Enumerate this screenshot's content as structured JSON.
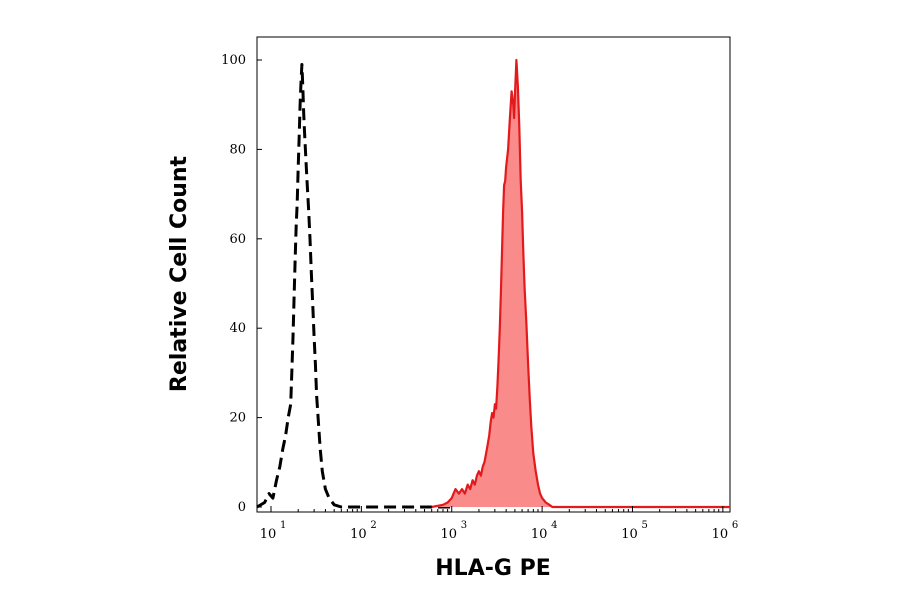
{
  "chart_data": {
    "type": "area",
    "xlabel": "HLA-G PE",
    "ylabel": "Relative Cell Count",
    "x_scale": "log",
    "xlim": [
      7,
      1200000
    ],
    "ylim": [
      0,
      100
    ],
    "x_ticks": [
      {
        "base": "10",
        "exp": "1",
        "value": 10
      },
      {
        "base": "10",
        "exp": "2",
        "value": 100
      },
      {
        "base": "10",
        "exp": "3",
        "value": 1000
      },
      {
        "base": "10",
        "exp": "4",
        "value": 10000
      },
      {
        "base": "10",
        "exp": "5",
        "value": 100000
      },
      {
        "base": "10",
        "exp": "6",
        "value": 1000000
      }
    ],
    "y_ticks": [
      0,
      20,
      40,
      60,
      80,
      100
    ],
    "grid": false,
    "legend": "none",
    "series": [
      {
        "style": "dashed",
        "color": "#000000",
        "fill": "none",
        "points": [
          [
            7,
            0
          ],
          [
            8.5,
            1
          ],
          [
            9.5,
            3
          ],
          [
            10.5,
            2
          ],
          [
            11.5,
            6
          ],
          [
            12.5,
            9
          ],
          [
            13.5,
            13
          ],
          [
            14.5,
            16
          ],
          [
            15.5,
            20
          ],
          [
            16.5,
            23
          ],
          [
            17,
            30
          ],
          [
            17.5,
            38
          ],
          [
            18,
            47
          ],
          [
            18.5,
            55
          ],
          [
            19,
            63
          ],
          [
            19.5,
            68
          ],
          [
            20,
            76
          ],
          [
            20.5,
            83
          ],
          [
            21,
            90
          ],
          [
            21.5,
            95
          ],
          [
            22,
            99
          ],
          [
            22.5,
            94
          ],
          [
            23,
            88
          ],
          [
            23.5,
            84
          ],
          [
            24,
            80
          ],
          [
            25,
            73
          ],
          [
            26,
            67
          ],
          [
            27,
            60
          ],
          [
            28,
            52
          ],
          [
            29,
            45
          ],
          [
            30,
            38
          ],
          [
            31,
            32
          ],
          [
            32,
            25
          ],
          [
            33.5,
            19
          ],
          [
            35,
            13
          ],
          [
            37,
            8
          ],
          [
            40,
            4
          ],
          [
            44,
            2
          ],
          [
            50,
            0.5
          ],
          [
            60,
            0
          ],
          [
            200,
            0
          ],
          [
            500,
            0
          ],
          [
            1000,
            0
          ]
        ]
      },
      {
        "style": "solid",
        "color": "#e31a1c",
        "fill": "#f98b8b",
        "points": [
          [
            600,
            0
          ],
          [
            800,
            0.5
          ],
          [
            900,
            1
          ],
          [
            1000,
            2
          ],
          [
            1100,
            4
          ],
          [
            1200,
            3
          ],
          [
            1300,
            4
          ],
          [
            1400,
            3
          ],
          [
            1500,
            5
          ],
          [
            1600,
            4
          ],
          [
            1700,
            6
          ],
          [
            1800,
            5
          ],
          [
            1900,
            7
          ],
          [
            2000,
            8
          ],
          [
            2100,
            7
          ],
          [
            2200,
            9
          ],
          [
            2300,
            10
          ],
          [
            2400,
            12
          ],
          [
            2500,
            14
          ],
          [
            2600,
            16
          ],
          [
            2700,
            19
          ],
          [
            2800,
            21
          ],
          [
            2900,
            20
          ],
          [
            3000,
            23
          ],
          [
            3100,
            22
          ],
          [
            3200,
            27
          ],
          [
            3300,
            33
          ],
          [
            3400,
            40
          ],
          [
            3500,
            48
          ],
          [
            3600,
            57
          ],
          [
            3700,
            66
          ],
          [
            3800,
            72
          ],
          [
            3900,
            73
          ],
          [
            4000,
            76
          ],
          [
            4200,
            80
          ],
          [
            4400,
            87
          ],
          [
            4600,
            93
          ],
          [
            4800,
            90
          ],
          [
            4900,
            87
          ],
          [
            5000,
            92
          ],
          [
            5200,
            100
          ],
          [
            5400,
            94
          ],
          [
            5600,
            85
          ],
          [
            5800,
            73
          ],
          [
            6000,
            66
          ],
          [
            6200,
            57
          ],
          [
            6400,
            49
          ],
          [
            6700,
            41
          ],
          [
            7000,
            32
          ],
          [
            7300,
            24
          ],
          [
            7600,
            18
          ],
          [
            8000,
            12
          ],
          [
            8500,
            8
          ],
          [
            9000,
            5
          ],
          [
            9500,
            3
          ],
          [
            10000,
            2
          ],
          [
            11000,
            1
          ],
          [
            12000,
            0.5
          ],
          [
            13000,
            0
          ],
          [
            40000,
            0
          ],
          [
            200000,
            0
          ],
          [
            1200000,
            0
          ]
        ]
      }
    ]
  }
}
